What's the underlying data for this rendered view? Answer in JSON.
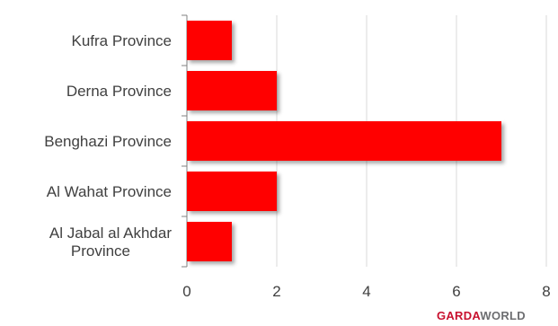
{
  "chart_data": {
    "type": "bar",
    "orientation": "horizontal",
    "categories": [
      "Kufra Province",
      "Derna Province",
      "Benghazi Province",
      "Al Wahat Province",
      "Al Jabal al Akhdar Province"
    ],
    "values": [
      1,
      2,
      7,
      2,
      1
    ],
    "xlim": [
      0,
      8
    ],
    "xticks": [
      0,
      2,
      4,
      6,
      8
    ],
    "grid": "vertical",
    "bar_color": "#ff0000"
  },
  "brand": {
    "part1": "GARDA",
    "part2": "WORLD"
  }
}
